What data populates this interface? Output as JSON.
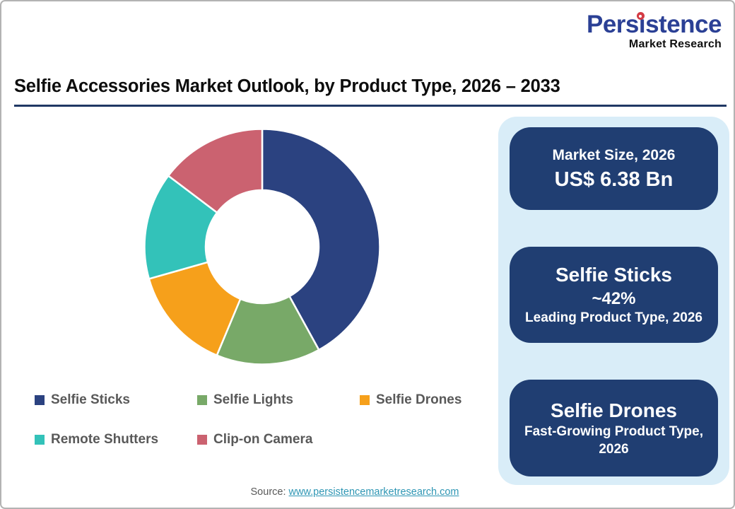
{
  "logo": {
    "name": "Persistence",
    "tagline": "Market Research",
    "brand_blue": "#2b4095",
    "dot_red": "#d43b44"
  },
  "title": "Selfie Accessories Market Outlook, by Product Type, 2026 – 2033",
  "title_rule_color": "#203864",
  "chart_data": {
    "type": "pie",
    "donut": true,
    "title": "Selfie Accessories Market Outlook, by Product Type, 2026 – 2033",
    "categories": [
      "Selfie Sticks",
      "Selfie Lights",
      "Selfie Drones",
      "Remote Shutters",
      "Clip-on Camera"
    ],
    "values": [
      42,
      14.3,
      14.3,
      14.7,
      14.7
    ],
    "unit": "%",
    "colors": [
      "#2b4280",
      "#78a968",
      "#f6a01b",
      "#33c2b9",
      "#cb6270"
    ],
    "start_angle_deg": 0,
    "direction": "clockwise",
    "inner_radius_ratio": 0.48,
    "legend_position": "bottom",
    "legend_text_color": "#595959"
  },
  "panel": {
    "bg_color": "#d9edf8",
    "card_color": "#203e72",
    "cards": [
      {
        "id": "market-size",
        "lines": [
          {
            "text": "Market Size, 2026",
            "size": "m"
          },
          {
            "text": "US$ 6.38 Bn",
            "size": "b"
          }
        ]
      },
      {
        "id": "leading-product",
        "lines": [
          {
            "text": "Selfie Sticks",
            "size": "h"
          },
          {
            "text": "~42%",
            "size": "n"
          },
          {
            "text": "Leading Product Type, 2026",
            "size": "s"
          }
        ]
      },
      {
        "id": "fast-growing-product",
        "lines": [
          {
            "text": "Selfie Drones",
            "size": "h"
          },
          {
            "text": "Fast-Growing Product Type, 2026",
            "size": "s"
          }
        ]
      }
    ]
  },
  "source": {
    "label": "Source:",
    "url": "www.persistencemarketresearch.com",
    "link_color": "#2e96b4"
  }
}
